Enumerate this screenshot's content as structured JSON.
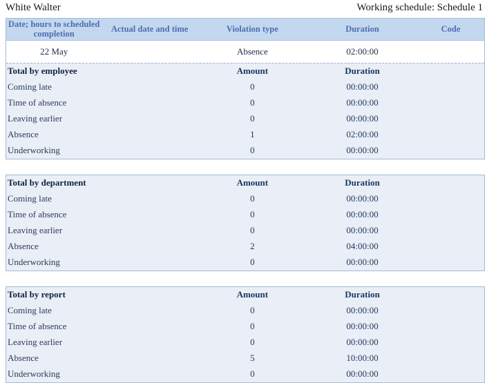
{
  "header": {
    "employee_name": "White Walter",
    "schedule_label": "Working schedule: Schedule 1"
  },
  "colors": {
    "table_header_bg": "#c3d7ef",
    "table_header_text": "#4c6fae",
    "totals_section_bg": "#e9eef7",
    "box_border": "#a4bad4"
  },
  "violations_table": {
    "columns": [
      "Date; hours to scheduled completion",
      "Actual date and time",
      "Violation type",
      "Duration",
      "Code"
    ],
    "rows": [
      {
        "date": "22 May",
        "actual_datetime": "",
        "violation_type": "Absence",
        "duration": "02:00:00",
        "code": ""
      }
    ]
  },
  "totals": {
    "amount_header": "Amount",
    "duration_header": "Duration",
    "sections": [
      {
        "title": "Total by employee",
        "rows": [
          {
            "label": "Coming late",
            "amount": "0",
            "duration": "00:00:00"
          },
          {
            "label": "Time of absence",
            "amount": "0",
            "duration": "00:00:00"
          },
          {
            "label": "Leaving earlier",
            "amount": "0",
            "duration": "00:00:00"
          },
          {
            "label": "Absence",
            "amount": "1",
            "duration": "02:00:00"
          },
          {
            "label": "Underworking",
            "amount": "0",
            "duration": "00:00:00"
          }
        ]
      },
      {
        "title": "Total by department",
        "rows": [
          {
            "label": "Coming late",
            "amount": "0",
            "duration": "00:00:00"
          },
          {
            "label": "Time of absence",
            "amount": "0",
            "duration": "00:00:00"
          },
          {
            "label": "Leaving earlier",
            "amount": "0",
            "duration": "00:00:00"
          },
          {
            "label": "Absence",
            "amount": "2",
            "duration": "04:00:00"
          },
          {
            "label": "Underworking",
            "amount": "0",
            "duration": "00:00:00"
          }
        ]
      },
      {
        "title": "Total by report",
        "rows": [
          {
            "label": "Coming late",
            "amount": "0",
            "duration": "00:00:00"
          },
          {
            "label": "Time of absence",
            "amount": "0",
            "duration": "00:00:00"
          },
          {
            "label": "Leaving earlier",
            "amount": "0",
            "duration": "00:00:00"
          },
          {
            "label": "Absence",
            "amount": "5",
            "duration": "10:00:00"
          },
          {
            "label": "Underworking",
            "amount": "0",
            "duration": "00:00:00"
          }
        ]
      }
    ]
  }
}
